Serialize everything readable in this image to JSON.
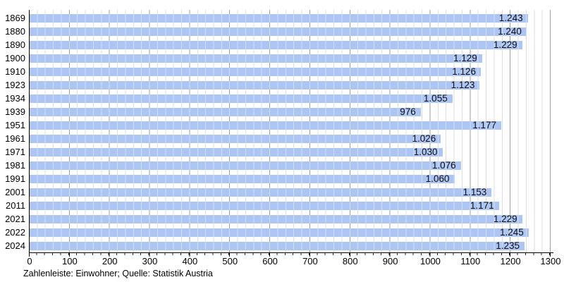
{
  "chart_data": {
    "type": "bar",
    "orientation": "horizontal",
    "title": "",
    "xlabel": "",
    "ylabel": "",
    "xlim": [
      0,
      1300
    ],
    "x_ticks": [
      0,
      100,
      200,
      300,
      400,
      500,
      600,
      700,
      800,
      900,
      1000,
      1100,
      1200,
      1300
    ],
    "grid": {
      "minor_step": 20,
      "major_step": 100,
      "legend_position": "none"
    },
    "categories": [
      "1869",
      "1880",
      "1890",
      "1900",
      "1910",
      "1923",
      "1934",
      "1939",
      "1951",
      "1961",
      "1971",
      "1981",
      "1991",
      "2001",
      "2011",
      "2021",
      "2022",
      "2024"
    ],
    "values": [
      1243,
      1240,
      1229,
      1129,
      1126,
      1123,
      1055,
      976,
      1177,
      1026,
      1030,
      1076,
      1060,
      1153,
      1171,
      1229,
      1245,
      1235
    ],
    "value_labels": [
      "1.243",
      "1.240",
      "1.229",
      "1.129",
      "1.126",
      "1.123",
      "1.055",
      "976",
      "1.177",
      "1.026",
      "1.030",
      "1.076",
      "1.060",
      "1.153",
      "1.171",
      "1.229",
      "1.245",
      "1.235"
    ],
    "footer": "Zahlenleiste: Einwohner; Quelle: Statistik Austria",
    "colors": {
      "bar": "#adc5f2",
      "bar_label": "#0b0b0f",
      "grid_minor": "#dedede",
      "grid_major": "#9e9e9e",
      "axis": "#000000",
      "background": "#ffffff"
    }
  }
}
